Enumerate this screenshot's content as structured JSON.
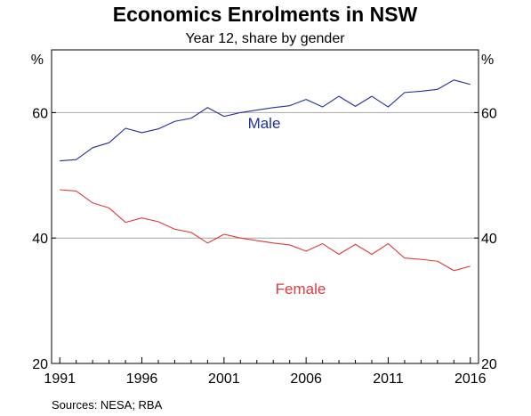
{
  "chart_data": {
    "type": "line",
    "title": "Economics Enrolments in NSW",
    "subtitle": "Year 12, share by gender",
    "ylabel_left": "%",
    "ylabel_right": "%",
    "ylim": [
      20,
      70
    ],
    "yticks": [
      20,
      40,
      60
    ],
    "xlim": [
      1990.5,
      2016.5
    ],
    "xticks": [
      1991,
      1996,
      2001,
      2006,
      2011,
      2016
    ],
    "grid": true,
    "x": [
      1991,
      1992,
      1993,
      1994,
      1995,
      1996,
      1997,
      1998,
      1999,
      2000,
      2001,
      2002,
      2003,
      2004,
      2005,
      2006,
      2007,
      2008,
      2009,
      2010,
      2011,
      2012,
      2013,
      2014,
      2015,
      2016
    ],
    "series": [
      {
        "name": "Male",
        "color": "#1f2f9f",
        "values": [
          52.3,
          52.5,
          54.4,
          55.2,
          57.5,
          56.8,
          57.4,
          58.6,
          59.1,
          60.8,
          59.4,
          60.0,
          60.4,
          60.8,
          61.1,
          62.1,
          60.9,
          62.6,
          61.0,
          62.6,
          60.9,
          63.2,
          63.4,
          63.7,
          65.2,
          64.5
        ]
      },
      {
        "name": "Female",
        "color": "#e03a3a",
        "values": [
          47.7,
          47.5,
          45.6,
          44.8,
          42.5,
          43.2,
          42.6,
          41.4,
          40.9,
          39.2,
          40.6,
          40.0,
          39.6,
          39.2,
          38.9,
          37.9,
          39.1,
          37.4,
          39.0,
          37.4,
          39.1,
          36.8,
          36.6,
          36.3,
          34.8,
          35.5
        ]
      }
    ],
    "source": "Sources:   NESA; RBA"
  },
  "colors": {
    "axis": "#000000",
    "gridline": "#a6a6a6",
    "male": "#1f2f9f",
    "female": "#e03a3a"
  }
}
